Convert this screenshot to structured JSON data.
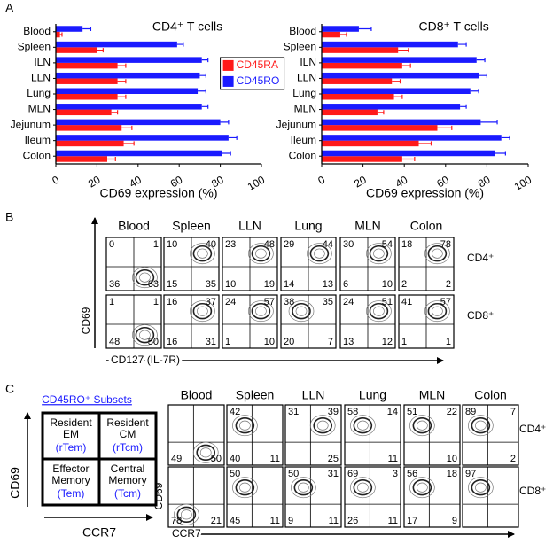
{
  "panel_labels": [
    "A",
    "B",
    "C"
  ],
  "chart_data": [
    {
      "type": "bar",
      "orientation": "horizontal",
      "title": "CD4⁺ T cells",
      "categories": [
        "Blood",
        "Spleen",
        "ILN",
        "LLN",
        "Lung",
        "MLN",
        "Jejunum",
        "Ileum",
        "Colon"
      ],
      "series": [
        {
          "name": "CD45RA",
          "color": "#ff1a1a",
          "values": [
            2,
            20,
            30,
            30,
            30,
            27,
            32,
            33,
            25
          ],
          "errors": [
            1,
            3,
            4,
            4,
            4,
            3,
            5,
            5,
            4
          ]
        },
        {
          "name": "CD45RO",
          "color": "#1a1aff",
          "values": [
            13,
            59,
            71,
            70,
            69,
            71,
            80,
            84,
            81
          ],
          "errors": [
            4,
            3,
            3,
            3,
            4,
            3,
            4,
            4,
            4
          ]
        }
      ],
      "xlim": [
        0,
        100
      ],
      "xticks": [
        0,
        20,
        40,
        60,
        80,
        100
      ],
      "x_label": "CD69  expression (%)",
      "legend": "center-right"
    },
    {
      "type": "bar",
      "orientation": "horizontal",
      "title": "CD8⁺ T cells",
      "categories": [
        "Blood",
        "Spleen",
        "ILN",
        "LLN",
        "Lung",
        "MLN",
        "Jejunum",
        "Ileum",
        "Colon"
      ],
      "series": [
        {
          "name": "CD45RA",
          "color": "#ff1a1a",
          "values": [
            9,
            37,
            39,
            34,
            35,
            27,
            56,
            47,
            39
          ],
          "errors": [
            3,
            5,
            4,
            4,
            4,
            3,
            7,
            6,
            6
          ]
        },
        {
          "name": "CD45RO",
          "color": "#1a1aff",
          "values": [
            18,
            66,
            75,
            76,
            72,
            67,
            77,
            87,
            84
          ],
          "errors": [
            6,
            4,
            4,
            4,
            4,
            3,
            8,
            4,
            5
          ]
        }
      ],
      "xlim": [
        0,
        100
      ],
      "xticks": [
        0,
        20,
        40,
        60,
        80,
        100
      ],
      "x_label": "CD69  expression (%)"
    }
  ],
  "panel_b": {
    "columns": [
      "Blood",
      "Spleen",
      "LLN",
      "Lung",
      "MLN",
      "Colon"
    ],
    "rows": [
      "CD4⁺",
      "CD8⁺"
    ],
    "y_label": "CD69",
    "x_label": "CD127  (IL-7R)",
    "quadrants": [
      [
        [
          0,
          1,
          36,
          63
        ],
        [
          10,
          40,
          15,
          35
        ],
        [
          23,
          48,
          10,
          19
        ],
        [
          29,
          44,
          14,
          13
        ],
        [
          30,
          54,
          6,
          10
        ],
        [
          18,
          78,
          2,
          2
        ]
      ],
      [
        [
          1,
          1,
          48,
          50
        ],
        [
          16,
          37,
          16,
          31
        ],
        [
          24,
          57,
          1,
          10
        ],
        [
          38,
          35,
          20,
          7
        ],
        [
          24,
          51,
          13,
          12
        ],
        [
          41,
          57,
          1,
          1
        ]
      ]
    ]
  },
  "panel_c": {
    "subsets": {
      "title": "CD45RO⁺ Subsets",
      "y_label": "CD69",
      "x_label": "CCR7",
      "cells": [
        {
          "lines": [
            "Resident",
            "EM"
          ],
          "abbr": "(rTem)"
        },
        {
          "lines": [
            "Resident",
            "CM"
          ],
          "abbr": "(rTcm)"
        },
        {
          "lines": [
            "Effector",
            "Memory"
          ],
          "abbr": "(Tem)"
        },
        {
          "lines": [
            "Central",
            "Memory"
          ],
          "abbr": "(Tcm)"
        }
      ]
    },
    "columns": [
      "Blood",
      "Spleen",
      "LLN",
      "Lung",
      "MLN",
      "Colon"
    ],
    "rows": [
      "CD4⁺",
      "CD8⁺"
    ],
    "y_label": "CD69",
    "x_label": "CCR7",
    "quadrants": [
      [
        [
          null,
          null,
          49,
          50
        ],
        [
          42,
          null,
          40,
          11
        ],
        [
          31,
          39,
          null,
          25
        ],
        [
          58,
          14,
          null,
          11
        ],
        [
          51,
          22,
          null,
          10
        ],
        [
          89,
          7,
          null,
          2
        ]
      ],
      [
        [
          null,
          null,
          78,
          21
        ],
        [
          50,
          null,
          45,
          11
        ],
        [
          50,
          31,
          9,
          11
        ],
        [
          69,
          3,
          26,
          11
        ],
        [
          56,
          18,
          17,
          9
        ],
        [
          97,
          null,
          null,
          null
        ]
      ]
    ]
  }
}
